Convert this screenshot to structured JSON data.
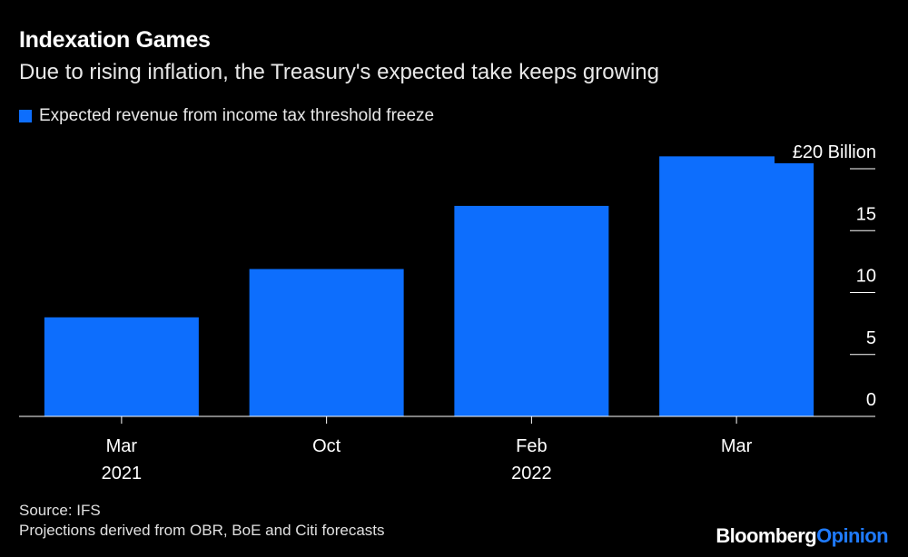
{
  "title": "Indexation Games",
  "subtitle": "Due to rising inflation, the Treasury's expected take keeps growing",
  "legend_label": "Expected revenue from income tax threshold freeze",
  "bar_color": "#0d6efd",
  "source_line1": "Source: IFS",
  "source_line2": "Projections derived from OBR, BoE and Citi forecasts",
  "brand": {
    "part1": "Bloomberg",
    "part2": "Opinion"
  },
  "chart_data": {
    "type": "bar",
    "categories": [
      "Mar 2021",
      "Oct",
      "Feb 2022",
      "Mar"
    ],
    "x_tick_labels": [
      [
        "Mar",
        "2021"
      ],
      [
        "Oct",
        ""
      ],
      [
        "Feb",
        "2022"
      ],
      [
        "Mar",
        ""
      ]
    ],
    "values": [
      8.0,
      11.9,
      17.0,
      21.0
    ],
    "series_name": "Expected revenue from income tax threshold freeze",
    "y_ticks": [
      0,
      5,
      10,
      15,
      20
    ],
    "y_tick_labels": [
      "0",
      "5",
      "10",
      "15",
      "£20 Billion"
    ],
    "ylim": [
      0,
      20
    ],
    "ylabel": "£ Billion",
    "title": "Indexation Games"
  }
}
